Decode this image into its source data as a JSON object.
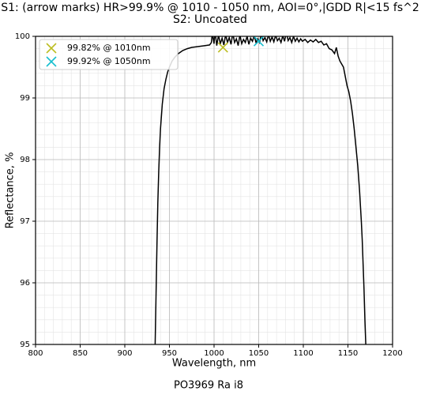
{
  "chart_data": {
    "type": "line",
    "title": "S1: (arrow marks) HR>99.9% @ 1010 - 1050 nm, AOI=0°,|GDD R|<15 fs^2",
    "subtitle": "S2: Uncoated",
    "xlabel": "Wavelength, nm",
    "ylabel": "Reflectance, %",
    "footer": "PO3969 Ra i8",
    "xlim": [
      800,
      1200
    ],
    "xticks": [
      800,
      850,
      900,
      950,
      1000,
      1050,
      1100,
      1150,
      1200
    ],
    "ylim": [
      95,
      100
    ],
    "yticks": [
      95,
      96,
      97,
      98,
      99,
      100
    ],
    "grid": true,
    "minor_grid": true,
    "legend": "upper left",
    "x": [
      934,
      935,
      936,
      937,
      938,
      939,
      940,
      942,
      944,
      946,
      948,
      950,
      953,
      956,
      960,
      965,
      970,
      975,
      980,
      985,
      990,
      995,
      997,
      998,
      1000,
      1001,
      1003,
      1005,
      1007,
      1009,
      1011,
      1013,
      1015,
      1017,
      1019,
      1021,
      1023,
      1025,
      1027,
      1029,
      1031,
      1033,
      1035,
      1037,
      1039,
      1041,
      1043,
      1045,
      1047,
      1049,
      1051,
      1053,
      1055,
      1057,
      1059,
      1061,
      1063,
      1065,
      1067,
      1069,
      1071,
      1073,
      1075,
      1077,
      1079,
      1081,
      1083,
      1085,
      1087,
      1089,
      1091,
      1093,
      1095,
      1097,
      1099,
      1102,
      1105,
      1108,
      1111,
      1114,
      1117,
      1120,
      1123,
      1126,
      1129,
      1132,
      1135,
      1137,
      1139,
      1141,
      1143,
      1145,
      1147,
      1149,
      1151,
      1153,
      1155,
      1157,
      1159,
      1161,
      1163,
      1165,
      1166,
      1167,
      1168,
      1169,
      1170
    ],
    "series": [
      {
        "color": "#000000",
        "values": [
          95.0,
          95.8,
          96.6,
          97.3,
          97.8,
          98.2,
          98.5,
          98.9,
          99.15,
          99.3,
          99.42,
          99.5,
          99.6,
          99.66,
          99.72,
          99.77,
          99.8,
          99.82,
          99.83,
          99.84,
          99.85,
          99.86,
          99.9,
          100.05,
          99.88,
          100.1,
          99.85,
          100.02,
          99.88,
          99.97,
          99.86,
          100.03,
          99.9,
          99.98,
          99.87,
          100.05,
          99.9,
          99.96,
          99.85,
          100.02,
          99.88,
          99.95,
          99.9,
          100.0,
          99.87,
          99.97,
          99.92,
          100.01,
          99.9,
          99.96,
          99.9,
          100.05,
          99.93,
          99.98,
          99.91,
          100.03,
          99.92,
          99.99,
          99.91,
          100.02,
          99.93,
          99.97,
          99.9,
          100.01,
          99.92,
          100.07,
          99.93,
          99.98,
          99.9,
          100.0,
          99.92,
          99.97,
          99.91,
          99.96,
          99.92,
          99.95,
          99.9,
          99.94,
          99.91,
          99.95,
          99.9,
          99.92,
          99.86,
          99.88,
          99.8,
          99.78,
          99.72,
          99.82,
          99.68,
          99.6,
          99.55,
          99.5,
          99.35,
          99.2,
          99.1,
          98.95,
          98.75,
          98.5,
          98.2,
          97.9,
          97.5,
          97.0,
          96.7,
          96.3,
          95.9,
          95.4,
          95.0
        ]
      }
    ],
    "markers": [
      {
        "name": "99.82% @ 1010nm",
        "color": "#bcbd22",
        "x": 1010,
        "y": 99.82
      },
      {
        "name": "99.92% @ 1050nm",
        "color": "#17becf",
        "x": 1050,
        "y": 99.92
      }
    ]
  }
}
